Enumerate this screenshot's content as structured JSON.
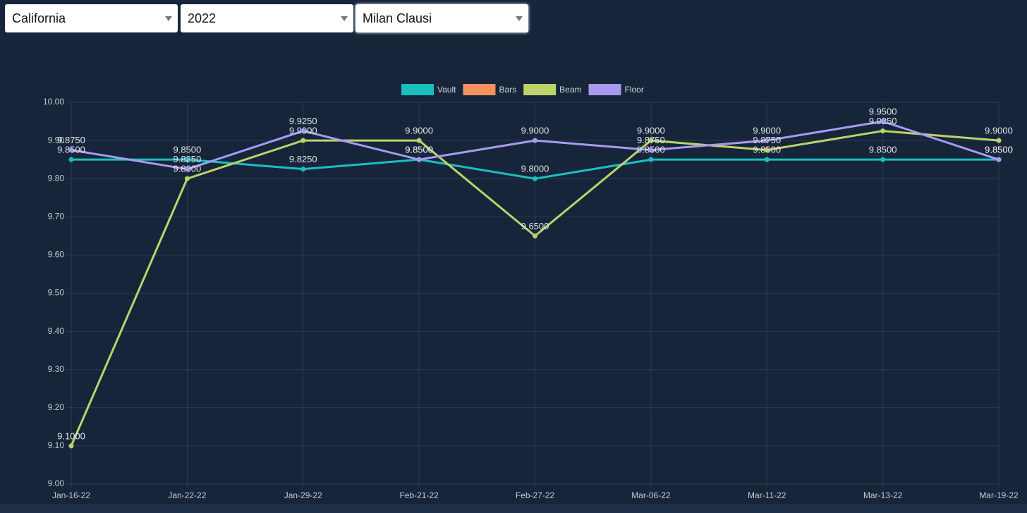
{
  "dropdowns": [
    "California",
    "2022",
    "Milan Clausi"
  ],
  "chart_data": {
    "type": "line",
    "categories": [
      "Jan-16-22",
      "Jan-22-22",
      "Jan-29-22",
      "Feb-21-22",
      "Feb-27-22",
      "Mar-06-22",
      "Mar-11-22",
      "Mar-13-22",
      "Mar-19-22"
    ],
    "series": [
      {
        "name": "Vault",
        "color": "#1bbfbf",
        "values": [
          9.85,
          9.85,
          9.825,
          9.85,
          9.8,
          9.85,
          9.85,
          9.85,
          9.85
        ],
        "value_labels": [
          "9.8500",
          "9.8500",
          "9.8250",
          "9.8500",
          "9.8000",
          "9.8500",
          "9.8500",
          "9.8500",
          "9.8500"
        ]
      },
      {
        "name": "Bars",
        "color": "#f4915e",
        "values": [
          null,
          null,
          null,
          null,
          null,
          null,
          null,
          null,
          null
        ]
      },
      {
        "name": "Beam",
        "color": "#bcd36a",
        "values": [
          9.1,
          9.8,
          9.9,
          9.9,
          9.65,
          9.9,
          9.875,
          9.925,
          9.9
        ],
        "value_labels": [
          "9.1000",
          "9.8000",
          "9.9000",
          "9.9000",
          "9.6500",
          "9.9000",
          "9.8750",
          "9.9250",
          "9.9000"
        ]
      },
      {
        "name": "Floor",
        "color": "#a99af0",
        "values": [
          9.875,
          9.825,
          9.925,
          9.85,
          9.9,
          9.875,
          9.9,
          9.95,
          9.85
        ],
        "value_labels": [
          "9.8750",
          "9.8250",
          "9.9250",
          "9.8500",
          "9.9000",
          "9.8750",
          "9.9000",
          "9.9500",
          "9.8500"
        ]
      }
    ],
    "ylim": [
      9.0,
      10.0
    ],
    "yticks": [
      {
        "value": 9.0,
        "label": "9.00"
      },
      {
        "value": 9.1,
        "label": "9.10"
      },
      {
        "value": 9.2,
        "label": "9.20"
      },
      {
        "value": 9.3,
        "label": "9.30"
      },
      {
        "value": 9.4,
        "label": "9.40"
      },
      {
        "value": 9.5,
        "label": "9.50"
      },
      {
        "value": 9.6,
        "label": "9.60"
      },
      {
        "value": 9.7,
        "label": "9.70"
      },
      {
        "value": 9.8,
        "label": "9.80"
      },
      {
        "value": 9.9,
        "label": "9.90"
      },
      {
        "value": 10.0,
        "label": "10.00"
      }
    ],
    "grid": true,
    "legend": "top"
  }
}
